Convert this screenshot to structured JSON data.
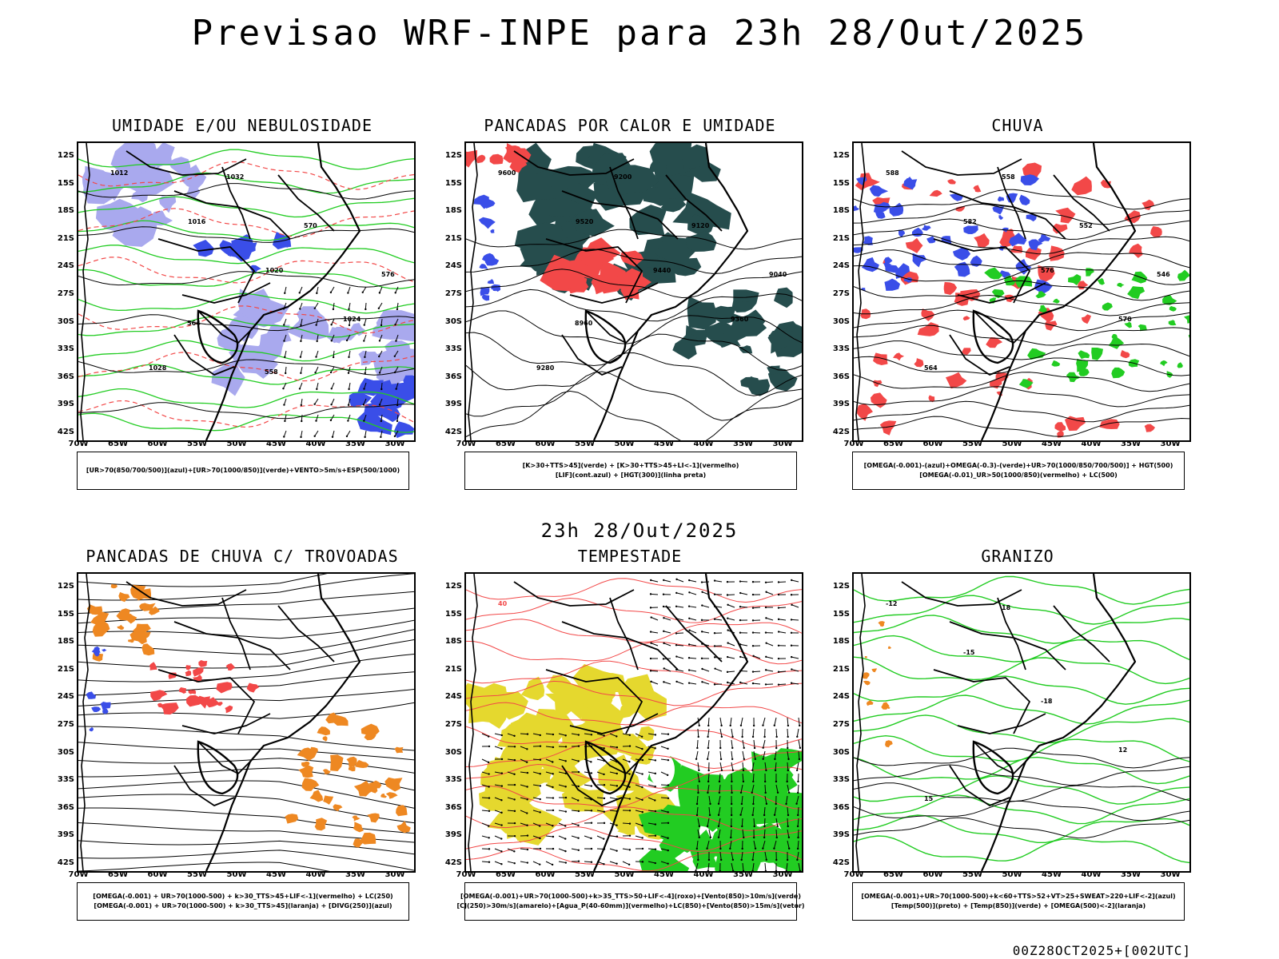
{
  "header": {
    "title": "Previsao WRF-INPE  para 23h 28/Out/2025"
  },
  "middle": {
    "time_label": "23h 28/Out/2025"
  },
  "footer": {
    "stamp": "00Z28OCT2025+[002UTC]"
  },
  "lat_ticks": [
    "12S",
    "15S",
    "18S",
    "21S",
    "24S",
    "27S",
    "30S",
    "33S",
    "36S",
    "39S",
    "42S"
  ],
  "lon_ticks": [
    "70W",
    "65W",
    "60W",
    "55W",
    "50W",
    "45W",
    "40W",
    "35W",
    "30W"
  ],
  "colors": {
    "blue": "#3a4ee8",
    "lavender": "#a9a9ee",
    "green": "#22cc22",
    "red": "#f24848",
    "darkteal": "#264d4d",
    "orange": "#ee8822",
    "yellow": "#e5d82e",
    "black": "#000000"
  },
  "panels": [
    {
      "id": "umidade",
      "title": "UMIDADE E/OU NEBULOSIDADE",
      "legend": [
        "[UR>70(850/700/500)](azul)+[UR>70(1000/850)](verde)+VENTO>5m/s+ESP(500/1000)"
      ],
      "labels": [
        "1012",
        "1016",
        "1020",
        "1024",
        "1028",
        "1032",
        "570",
        "576",
        "564",
        "558"
      ]
    },
    {
      "id": "pancadas",
      "title": "PANCADAS POR CALOR E UMIDADE",
      "legend": [
        "[K>30+TTS>45](verde) + [K>30+TTS>45+LI<-1](vermelho)",
        "[LIF](cont.azul) + [HGT(300)](linha preta)"
      ],
      "labels": [
        "9600",
        "9520",
        "9440",
        "9360",
        "9280",
        "9200",
        "9120",
        "9040",
        "8960"
      ]
    },
    {
      "id": "chuva",
      "title": "CHUVA",
      "legend": [
        "[OMEGA(-0.001)-(azul)+OMEGA(-0.3)-(verde)+UR>70(1000/850/700/500)] + HGT(500)",
        "[OMEGA(-0.01)_UR>50(1000/850)(vermelho) + LC(500)"
      ],
      "labels": [
        "588",
        "582",
        "576",
        "570",
        "564",
        "558",
        "552",
        "546"
      ]
    },
    {
      "id": "trovoadas",
      "title": "PANCADAS DE CHUVA C/ TROVOADAS",
      "legend": [
        "[OMEGA(-0.001) + UR>70(1000-500) + k>30_TTS>45+LIF<-1](vermelho) + LC(250)",
        "[OMEGA(-0.001) + UR>70(1000-500) + k>30_TTS>45](laranja) + [DIVG(250)](azul)"
      ],
      "labels": []
    },
    {
      "id": "tempestade",
      "title": "TEMPESTADE",
      "legend": [
        "[OMEGA(-0.001)+UR>70(1000-500)+k>35_TTS>50+LIF<-4](roxo)+[Vento(850)>10m/s](verde)",
        "[CJ(250)>30m/s](amarelo)+[Agua_P(40-60mm)](vermelho)+LC(850)+[Vento(850)>15m/s](vetor)"
      ],
      "labels": [
        "40"
      ]
    },
    {
      "id": "granizo",
      "title": "GRANIZO",
      "legend": [
        "[OMEGA(-0.001)+UR>70(1000-500)+k<60+TTS>52+VT>25+SWEAT>220+LIF<-2](azul)",
        "[Temp(500)](preto) + [Temp(850)](verde) + [OMEGA(500)<-2](laranja)"
      ],
      "labels": [
        "-12",
        "-15",
        "-18",
        "12",
        "15",
        "18"
      ]
    }
  ]
}
